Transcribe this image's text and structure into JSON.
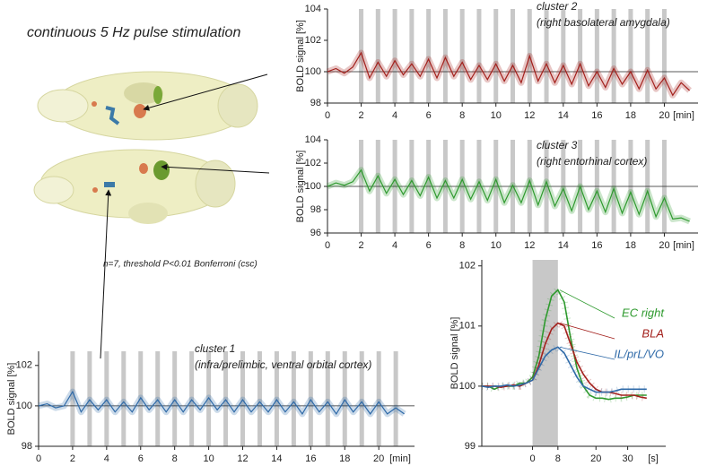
{
  "title": "continuous 5 Hz pulse stimulation",
  "annotation": "n=7, threshold P<0.01 Bonferroni (csc)",
  "chart_data": [
    {
      "type": "line",
      "title": "cluster 2",
      "subtitle": "(right basolateral amygdala)",
      "ylabel": "BOLD signal [%]",
      "xlabel": "[min]",
      "xlim": [
        0,
        22
      ],
      "ylim": [
        98,
        104
      ],
      "xticks": [
        0,
        2,
        4,
        6,
        8,
        10,
        12,
        14,
        16,
        18,
        20
      ],
      "yticks": [
        98,
        100,
        102,
        104
      ],
      "hline": 100,
      "stim_x": [
        2,
        3,
        4,
        5,
        6,
        7,
        8,
        9,
        10,
        11,
        12,
        13,
        14,
        15,
        16,
        17,
        18,
        19,
        20
      ],
      "color": "#a3201c",
      "x": [
        0,
        0.5,
        1,
        1.5,
        2,
        2.5,
        3,
        3.5,
        4,
        4.5,
        5,
        5.5,
        6,
        6.5,
        7,
        7.5,
        8,
        8.5,
        9,
        9.5,
        10,
        10.5,
        11,
        11.5,
        12,
        12.5,
        13,
        13.5,
        14,
        14.5,
        15,
        15.5,
        16,
        16.5,
        17,
        17.5,
        18,
        18.5,
        19,
        19.5,
        20,
        20.5,
        21,
        21.5
      ],
      "values": [
        100.0,
        100.2,
        99.9,
        100.3,
        101.2,
        99.6,
        100.6,
        99.7,
        100.7,
        99.8,
        100.5,
        99.7,
        100.8,
        99.6,
        100.9,
        99.7,
        100.6,
        99.5,
        100.4,
        99.5,
        100.5,
        99.4,
        100.4,
        99.3,
        101.0,
        99.4,
        100.5,
        99.3,
        100.4,
        99.2,
        100.5,
        99.1,
        100.0,
        99.0,
        100.2,
        99.2,
        100.0,
        98.9,
        100.1,
        98.9,
        99.6,
        98.5,
        99.3,
        98.8
      ]
    },
    {
      "type": "line",
      "title": "cluster 3",
      "subtitle": "(right entorhinal cortex)",
      "ylabel": "BOLD signal [%]",
      "xlabel": "[min]",
      "xlim": [
        0,
        22
      ],
      "ylim": [
        96,
        104
      ],
      "xticks": [
        0,
        2,
        4,
        6,
        8,
        10,
        12,
        14,
        16,
        18,
        20
      ],
      "yticks": [
        96,
        98,
        100,
        102,
        104
      ],
      "hline": 100,
      "stim_x": [
        2,
        3,
        4,
        5,
        6,
        7,
        8,
        9,
        10,
        11,
        12,
        13,
        14,
        15,
        16,
        17,
        18,
        19,
        20
      ],
      "color": "#2e9a2e",
      "x": [
        0,
        0.5,
        1,
        1.5,
        2,
        2.5,
        3,
        3.5,
        4,
        4.5,
        5,
        5.5,
        6,
        6.5,
        7,
        7.5,
        8,
        8.5,
        9,
        9.5,
        10,
        10.5,
        11,
        11.5,
        12,
        12.5,
        13,
        13.5,
        14,
        14.5,
        15,
        15.5,
        16,
        16.5,
        17,
        17.5,
        18,
        18.5,
        19,
        19.5,
        20,
        20.5,
        21,
        21.5
      ],
      "values": [
        100.0,
        100.3,
        100.1,
        100.4,
        101.4,
        99.6,
        100.9,
        99.4,
        100.6,
        99.3,
        100.5,
        99.2,
        100.8,
        99.0,
        100.5,
        99.0,
        100.6,
        98.9,
        100.4,
        98.8,
        100.6,
        98.6,
        100.1,
        98.6,
        100.5,
        98.4,
        100.4,
        98.3,
        99.8,
        97.9,
        100.0,
        98.0,
        99.6,
        97.8,
        99.8,
        97.7,
        99.5,
        97.6,
        99.6,
        97.4,
        99.0,
        97.2,
        97.3,
        97.0
      ]
    },
    {
      "type": "line",
      "title": "cluster 1",
      "subtitle": "(infra/prelimbic, ventral orbital cortex)",
      "ylabel": "BOLD signal [%]",
      "xlabel": "[min]",
      "xlim": [
        0,
        22.1
      ],
      "ylim": [
        98,
        102.7
      ],
      "xticks": [
        0,
        2,
        4,
        6,
        8,
        10,
        12,
        14,
        16,
        18,
        20
      ],
      "yticks": [
        98,
        100,
        102
      ],
      "hline": 100,
      "stim_x": [
        2,
        3,
        4,
        5,
        6,
        7,
        8,
        9,
        10,
        11,
        12,
        13,
        14,
        15,
        16,
        17,
        18,
        19,
        20,
        21
      ],
      "color": "#2f6aa8",
      "x": [
        0,
        0.5,
        1,
        1.5,
        2,
        2.5,
        3,
        3.5,
        4,
        4.5,
        5,
        5.5,
        6,
        6.5,
        7,
        7.5,
        8,
        8.5,
        9,
        9.5,
        10,
        10.5,
        11,
        11.5,
        12,
        12.5,
        13,
        13.5,
        14,
        14.5,
        15,
        15.5,
        16,
        16.5,
        17,
        17.5,
        18,
        18.5,
        19,
        19.5,
        20,
        20.5,
        21,
        21.5
      ],
      "values": [
        100.0,
        100.1,
        99.9,
        100.0,
        100.7,
        99.7,
        100.3,
        99.8,
        100.3,
        99.7,
        100.2,
        99.7,
        100.4,
        99.8,
        100.3,
        99.7,
        100.3,
        99.7,
        100.3,
        99.8,
        100.4,
        99.8,
        100.3,
        99.7,
        100.3,
        99.7,
        100.2,
        99.7,
        100.3,
        99.7,
        100.2,
        99.6,
        100.3,
        99.7,
        100.2,
        99.6,
        100.3,
        99.7,
        100.2,
        99.6,
        100.2,
        99.6,
        99.9,
        99.6
      ]
    },
    {
      "type": "event",
      "ylabel": "BOLD signal [%]",
      "xlabel": "[s]",
      "xlim": [
        -16,
        42
      ],
      "ylim": [
        99,
        102.1
      ],
      "xticks": [
        0,
        8,
        20,
        30
      ],
      "yticks": [
        99,
        100,
        101,
        102
      ],
      "stim_range": [
        0,
        8
      ],
      "x": [
        -16,
        -14,
        -12,
        -10,
        -8,
        -6,
        -4,
        -2,
        0,
        2,
        4,
        6,
        8,
        10,
        12,
        14,
        16,
        18,
        20,
        22,
        24,
        26,
        28,
        30,
        32,
        34,
        36
      ],
      "series": [
        {
          "name": "EC right",
          "color": "#2e9a2e",
          "values": [
            100.0,
            100.0,
            99.95,
            100.0,
            100.0,
            100.0,
            100.05,
            100.05,
            100.15,
            100.5,
            101.1,
            101.5,
            101.6,
            101.4,
            100.8,
            100.3,
            100.0,
            99.85,
            99.8,
            99.8,
            99.78,
            99.8,
            99.8,
            99.82,
            99.85,
            99.85,
            99.85
          ]
        },
        {
          "name": "BLA",
          "color": "#a3201c",
          "values": [
            100.0,
            100.0,
            100.0,
            99.98,
            100.0,
            100.02,
            100.0,
            100.05,
            100.1,
            100.35,
            100.7,
            100.95,
            101.05,
            101.0,
            100.7,
            100.4,
            100.2,
            100.05,
            99.95,
            99.9,
            99.9,
            99.88,
            99.85,
            99.85,
            99.85,
            99.82,
            99.8
          ]
        },
        {
          "name": "IL/prL/VO",
          "color": "#2f6aa8",
          "values": [
            100.0,
            99.98,
            100.0,
            100.0,
            100.02,
            100.0,
            100.02,
            100.05,
            100.1,
            100.3,
            100.5,
            100.6,
            100.65,
            100.55,
            100.35,
            100.15,
            100.0,
            99.95,
            99.9,
            99.9,
            99.9,
            99.92,
            99.95,
            99.95,
            99.95,
            99.95,
            99.95
          ]
        }
      ]
    }
  ]
}
